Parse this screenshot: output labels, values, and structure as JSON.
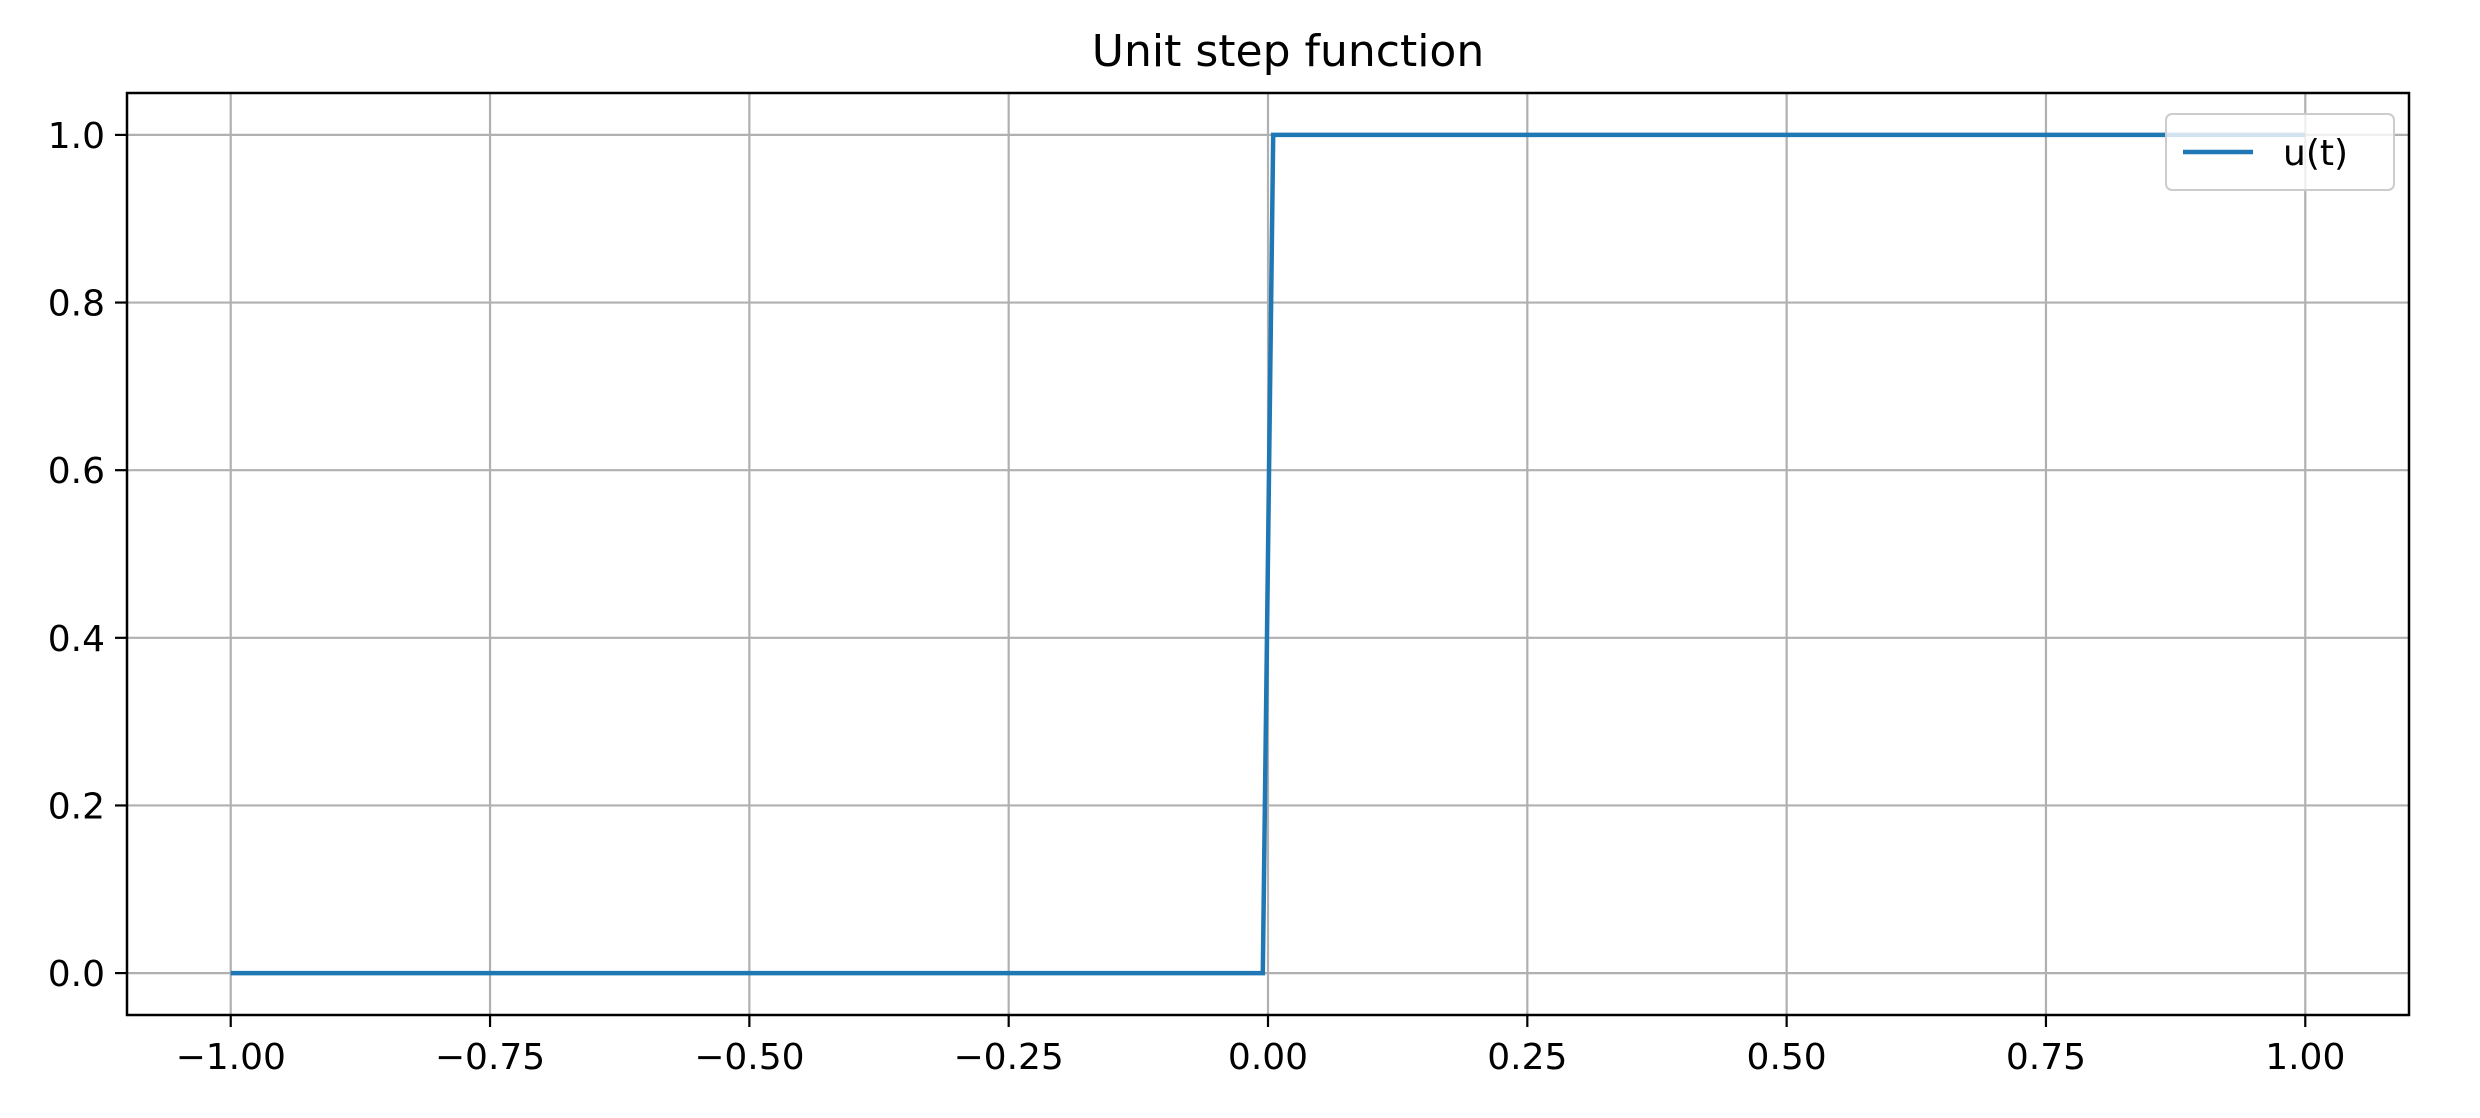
{
  "chart_data": {
    "type": "line",
    "title": "Unit step function",
    "xlabel": "",
    "ylabel": "",
    "xlim": [
      -1.1,
      1.1
    ],
    "ylim": [
      -0.05,
      1.05
    ],
    "xticks": [
      -1.0,
      -0.75,
      -0.5,
      -0.25,
      0.0,
      0.25,
      0.5,
      0.75,
      1.0
    ],
    "xtick_labels": [
      "−1.00",
      "−0.75",
      "−0.50",
      "−0.25",
      "0.00",
      "0.25",
      "0.50",
      "0.75",
      "1.00"
    ],
    "yticks": [
      0.0,
      0.2,
      0.4,
      0.6,
      0.8,
      1.0
    ],
    "ytick_labels": [
      "0.0",
      "0.2",
      "0.4",
      "0.6",
      "0.8",
      "1.0"
    ],
    "grid": true,
    "legend_position": "upper-right",
    "series": [
      {
        "name": "u(t)",
        "color": "#1f77b4",
        "x": [
          -1.0,
          -0.75,
          -0.5,
          -0.25,
          -0.005,
          0.005,
          0.25,
          0.5,
          0.75,
          1.0
        ],
        "y": [
          0,
          0,
          0,
          0,
          0,
          1,
          1,
          1,
          1,
          1
        ]
      }
    ]
  }
}
